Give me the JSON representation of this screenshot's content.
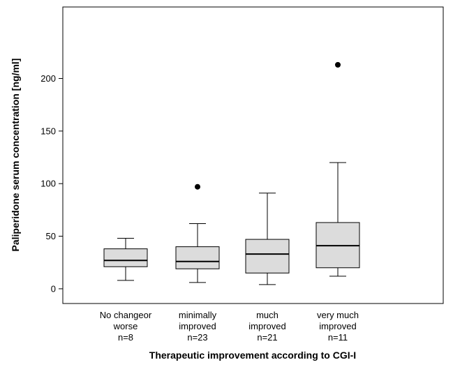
{
  "chart_data": {
    "type": "boxplot",
    "xlabel": "Therapeutic improvement according to CGI-I",
    "ylabel": "Paliperidone serum concentration [ng/ml]",
    "ylim": [
      -14,
      268
    ],
    "yticks": [
      0,
      50,
      100,
      150,
      200
    ],
    "box_color": "#dcdcdc",
    "categories": [
      {
        "lines": [
          "No changeor",
          "worse",
          "n=8"
        ]
      },
      {
        "lines": [
          "minimally",
          "improved",
          "n=23"
        ]
      },
      {
        "lines": [
          "much",
          "improved",
          "n=21"
        ]
      },
      {
        "lines": [
          "very much",
          "improved",
          "n=11"
        ]
      }
    ],
    "boxes": [
      {
        "whisker_low": 8,
        "q1": 21,
        "median": 27,
        "q3": 38,
        "whisker_high": 48,
        "outliers": []
      },
      {
        "whisker_low": 6,
        "q1": 19,
        "median": 26,
        "q3": 40,
        "whisker_high": 62,
        "outliers": [
          97
        ]
      },
      {
        "whisker_low": 4,
        "q1": 15,
        "median": 33,
        "q3": 47,
        "whisker_high": 91,
        "outliers": []
      },
      {
        "whisker_low": 12,
        "q1": 20,
        "median": 41,
        "q3": 63,
        "whisker_high": 120,
        "outliers": [
          213
        ]
      }
    ]
  }
}
